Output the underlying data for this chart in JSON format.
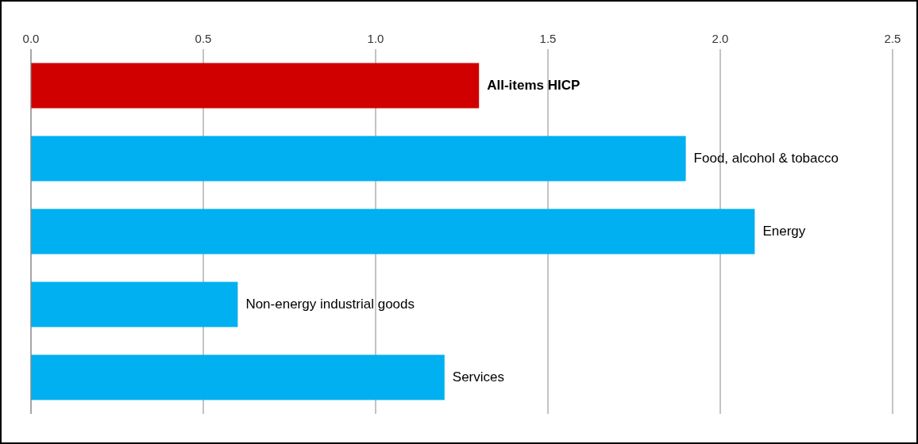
{
  "chart_data": {
    "type": "bar",
    "orientation": "horizontal",
    "categories": [
      "All-items HICP",
      "Food, alcohol & tobacco",
      "Energy",
      "Non-energy industrial goods",
      "Services"
    ],
    "values": [
      1.3,
      1.9,
      2.1,
      0.6,
      1.2
    ],
    "colors": [
      "#d10000",
      "#00b0f0",
      "#00b0f0",
      "#00b0f0",
      "#00b0f0"
    ],
    "xlim": [
      0,
      2.5
    ],
    "xticks": [
      {
        "value": 0,
        "label": "0.0"
      },
      {
        "value": 0.5,
        "label": "0.5"
      },
      {
        "value": 1,
        "label": "1.0"
      },
      {
        "value": 1.5,
        "label": "1.5"
      },
      {
        "value": 2,
        "label": "2.0"
      },
      {
        "value": 2.5,
        "label": "2.5"
      }
    ],
    "grid": "x",
    "legend": false
  }
}
